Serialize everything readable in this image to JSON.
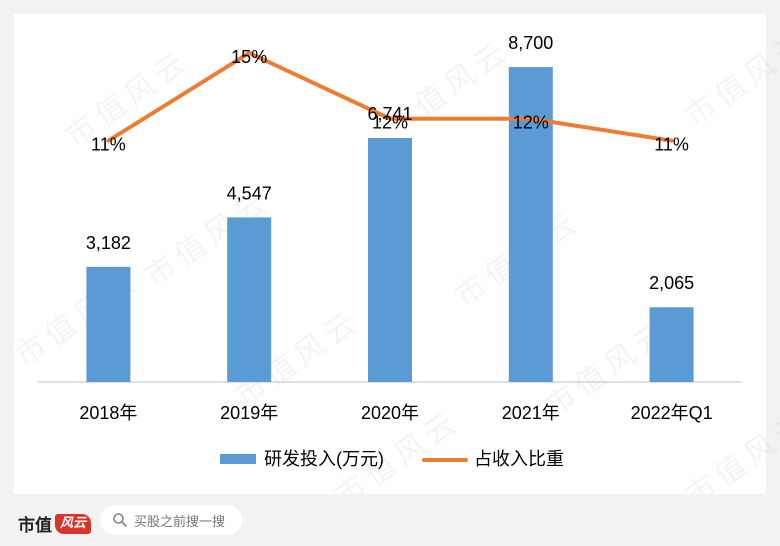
{
  "chart_data": {
    "type": "bar",
    "categories": [
      "2018年",
      "2019年",
      "2020年",
      "2021年",
      "2022年Q1"
    ],
    "series": [
      {
        "name": "研发投入(万元)",
        "type": "bar",
        "values": [
          3182,
          4547,
          6741,
          8700,
          2065
        ],
        "labels": [
          "3,182",
          "4,547",
          "6,741",
          "8,700",
          "2,065"
        ],
        "color": "#5b9bd5"
      },
      {
        "name": "占收入比重",
        "type": "line",
        "values": [
          11,
          15,
          12,
          12,
          11
        ],
        "labels": [
          "11%",
          "15%",
          "12%",
          "12%",
          "11%"
        ],
        "color": "#ed7d31"
      }
    ],
    "axes": {
      "bar_ylim": [
        0,
        10000
      ],
      "line_ylim": [
        0,
        16.5
      ]
    },
    "legend": "bottom",
    "grid": false
  },
  "watermark": {
    "text": "市值风云"
  },
  "footer": {
    "brand_text": "市值",
    "brand_mark": "风云",
    "search_placeholder": "买股之前搜一搜"
  }
}
